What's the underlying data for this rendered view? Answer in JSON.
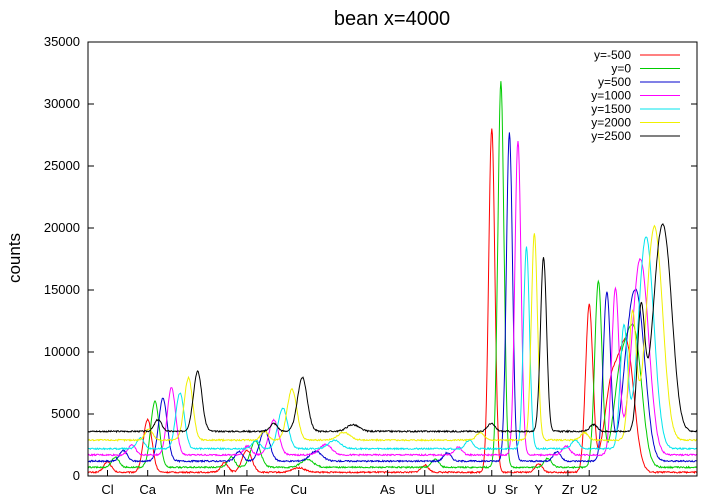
{
  "chart_data": {
    "type": "line",
    "title": "bean x=4000",
    "xlabel": "",
    "ylabel": "counts",
    "xlim": [
      0,
      1000
    ],
    "ylim": [
      0,
      35000
    ],
    "yticks": [
      0,
      5000,
      10000,
      15000,
      20000,
      25000,
      30000,
      35000
    ],
    "grid": false,
    "legend_position": "top-right",
    "element_labels": [
      {
        "label": "Cl",
        "x": 32
      },
      {
        "label": "Ca",
        "x": 98
      },
      {
        "label": "Mn",
        "x": 224
      },
      {
        "label": "Fe",
        "x": 261
      },
      {
        "label": "Cu",
        "x": 346
      },
      {
        "label": "As",
        "x": 492
      },
      {
        "label": "ULl",
        "x": 553
      },
      {
        "label": "U",
        "x": 663
      },
      {
        "label": "Sr",
        "x": 695
      },
      {
        "label": "Y",
        "x": 740
      },
      {
        "label": "Zr",
        "x": 788
      },
      {
        "label": "U2",
        "x": 823
      }
    ],
    "series": [
      {
        "name": "y=-500",
        "color": "#ff0000",
        "baseline": 300,
        "peaks": [
          [
            32,
            900,
            6
          ],
          [
            98,
            4300,
            7
          ],
          [
            224,
            800,
            6
          ],
          [
            261,
            1800,
            8
          ],
          [
            346,
            400,
            10
          ],
          [
            553,
            600,
            6
          ],
          [
            663,
            27800,
            5
          ],
          [
            740,
            700,
            6
          ],
          [
            823,
            13500,
            6
          ],
          [
            860,
            7000,
            12
          ],
          [
            885,
            9800,
            12
          ]
        ]
      },
      {
        "name": "y=0",
        "color": "#00cc00",
        "baseline": 700,
        "peaks": [
          [
            45,
            900,
            6
          ],
          [
            110,
            5400,
            7
          ],
          [
            235,
            900,
            6
          ],
          [
            275,
            2200,
            8
          ],
          [
            360,
            700,
            10
          ],
          [
            570,
            700,
            6
          ],
          [
            678,
            31200,
            5
          ],
          [
            755,
            800,
            6
          ],
          [
            838,
            15000,
            6
          ],
          [
            875,
            7500,
            12
          ],
          [
            898,
            10000,
            12
          ]
        ]
      },
      {
        "name": "y=500",
        "color": "#0000cc",
        "baseline": 1200,
        "peaks": [
          [
            58,
            1000,
            6
          ],
          [
            123,
            5200,
            7
          ],
          [
            248,
            900,
            6
          ],
          [
            290,
            2600,
            8
          ],
          [
            374,
            900,
            10
          ],
          [
            590,
            800,
            6
          ],
          [
            692,
            26600,
            5
          ],
          [
            770,
            900,
            6
          ],
          [
            852,
            13700,
            6
          ],
          [
            888,
            7800,
            12
          ],
          [
            905,
            10100,
            12
          ]
        ]
      },
      {
        "name": "y=1000",
        "color": "#ff00ff",
        "baseline": 1700,
        "peaks": [
          [
            72,
            1000,
            6
          ],
          [
            137,
            5600,
            7
          ],
          [
            262,
            900,
            6
          ],
          [
            305,
            3000,
            8
          ],
          [
            390,
            1000,
            10
          ],
          [
            608,
            800,
            6
          ],
          [
            706,
            25500,
            5
          ],
          [
            785,
            900,
            6
          ],
          [
            866,
            13500,
            6
          ],
          [
            900,
            8000,
            12
          ],
          [
            912,
            10200,
            12
          ]
        ]
      },
      {
        "name": "y=1500",
        "color": "#00e5ee",
        "baseline": 2200,
        "peaks": [
          [
            86,
            1100,
            6
          ],
          [
            151,
            4700,
            7
          ],
          [
            276,
            900,
            6
          ],
          [
            320,
            3500,
            8
          ],
          [
            405,
            900,
            10
          ],
          [
            626,
            900,
            6
          ],
          [
            720,
            16500,
            5
          ],
          [
            800,
            900,
            6
          ],
          [
            880,
            10000,
            6
          ],
          [
            912,
            8500,
            12
          ],
          [
            920,
            10000,
            12
          ]
        ]
      },
      {
        "name": "y=2000",
        "color": "#f0f000",
        "baseline": 2900,
        "peaks": [
          [
            100,
            1200,
            6
          ],
          [
            165,
            5300,
            7
          ],
          [
            290,
            1000,
            6
          ],
          [
            335,
            4400,
            8
          ],
          [
            420,
            900,
            10
          ],
          [
            644,
            900,
            6
          ],
          [
            733,
            17000,
            5
          ],
          [
            815,
            900,
            6
          ],
          [
            894,
            10300,
            6
          ],
          [
            924,
            9000,
            12
          ],
          [
            935,
            10700,
            12
          ]
        ]
      },
      {
        "name": "y=2500",
        "color": "#000000",
        "baseline": 3600,
        "peaks": [
          [
            115,
            1300,
            6
          ],
          [
            180,
            5200,
            7
          ],
          [
            305,
            1000,
            6
          ],
          [
            352,
            4700,
            8
          ],
          [
            435,
            900,
            10
          ],
          [
            662,
            1000,
            6
          ],
          [
            748,
            14400,
            5
          ],
          [
            830,
            900,
            6
          ],
          [
            908,
            10000,
            6
          ],
          [
            935,
            9500,
            12
          ],
          [
            950,
            11500,
            12
          ]
        ]
      }
    ]
  }
}
